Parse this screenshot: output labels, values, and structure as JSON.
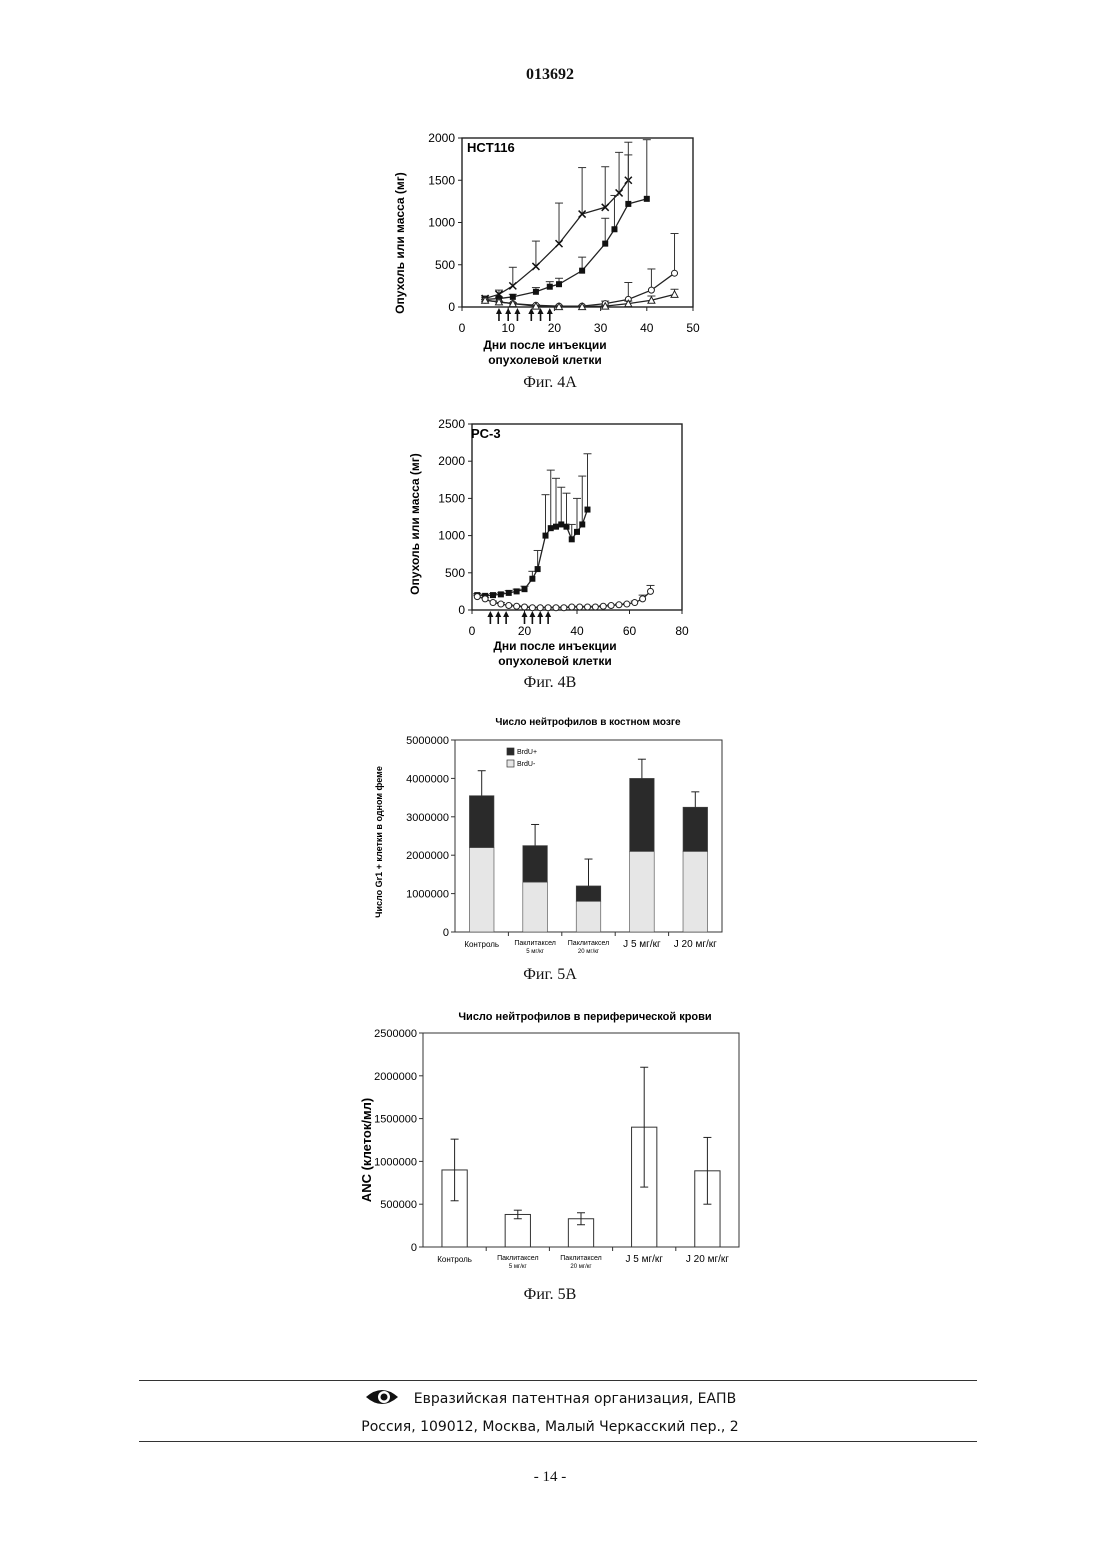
{
  "header": {
    "doc_number": "013692"
  },
  "figures": [
    {
      "caption": "Фиг. 4A"
    },
    {
      "caption": "Фиг. 4B"
    },
    {
      "caption": "Фиг. 5A"
    },
    {
      "caption": "Фиг. 5B"
    }
  ],
  "footer": {
    "org": "Евразийская патентная организация, ЕАПВ",
    "address": "Россия, 109012, Москва, Малый Черкасский пер., 2",
    "page": "- 14 -",
    "logo_icon": "eye-logo-icon"
  },
  "chart_data": [
    {
      "type": "line",
      "title": "HCT116",
      "xlabel": "Дни после инъекции опухолевой клетки",
      "ylabel": "Опухоль или масса (мг)",
      "xlim": [
        0,
        50
      ],
      "ylim": [
        0,
        2000
      ],
      "xticks": [
        "0",
        "10",
        "20",
        "30",
        "40",
        "50"
      ],
      "yticks": [
        "0",
        "500",
        "1000",
        "1500",
        "2000"
      ],
      "arrows_x": [
        8,
        10,
        12,
        15,
        17,
        19
      ],
      "series": [
        {
          "marker": "x",
          "x": [
            5,
            8,
            11,
            16,
            21,
            26,
            31,
            34,
            36
          ],
          "y": [
            100,
            150,
            250,
            480,
            750,
            1100,
            1180,
            1350,
            1500
          ],
          "err": [
            30,
            50,
            220,
            300,
            480,
            550,
            480,
            480,
            450
          ]
        },
        {
          "marker": "square",
          "x": [
            5,
            8,
            11,
            16,
            19,
            21,
            26,
            31,
            33,
            36,
            40
          ],
          "y": [
            90,
            100,
            120,
            180,
            240,
            270,
            430,
            750,
            920,
            1220,
            1280
          ],
          "err": [
            20,
            20,
            30,
            50,
            60,
            70,
            160,
            300,
            400,
            580,
            700
          ]
        },
        {
          "marker": "circle-open",
          "x": [
            5,
            8,
            11,
            16,
            21,
            26,
            31,
            36,
            41,
            46
          ],
          "y": [
            80,
            60,
            40,
            20,
            10,
            10,
            40,
            90,
            200,
            400
          ],
          "err": [
            10,
            10,
            10,
            10,
            10,
            10,
            30,
            200,
            250,
            470
          ]
        },
        {
          "marker": "triangle-open",
          "x": [
            5,
            8,
            11,
            16,
            21,
            26,
            31,
            36,
            41,
            46
          ],
          "y": [
            80,
            60,
            40,
            10,
            5,
            5,
            10,
            40,
            80,
            150
          ],
          "err": [
            10,
            10,
            10,
            10,
            10,
            10,
            10,
            30,
            50,
            60
          ]
        }
      ]
    },
    {
      "type": "line",
      "title": "PC-3",
      "xlabel": "Дни после инъекции опухолевой клетки",
      "ylabel": "Опухоль или масса (мг)",
      "xlim": [
        0,
        80
      ],
      "ylim": [
        0,
        2500
      ],
      "xticks": [
        "0",
        "20",
        "40",
        "60",
        "80"
      ],
      "yticks": [
        "0",
        "500",
        "1000",
        "1500",
        "2000",
        "2500"
      ],
      "arrows_x": [
        7,
        10,
        13,
        20,
        23,
        26,
        29
      ],
      "series": [
        {
          "marker": "square",
          "x": [
            2,
            5,
            8,
            11,
            14,
            17,
            20,
            23,
            25,
            28,
            30,
            32,
            34,
            36,
            38,
            40,
            42,
            44
          ],
          "y": [
            200,
            190,
            200,
            210,
            230,
            250,
            280,
            420,
            550,
            1000,
            1100,
            1120,
            1150,
            1120,
            950,
            1050,
            1150,
            1350
          ],
          "err": [
            20,
            20,
            20,
            20,
            30,
            30,
            40,
            100,
            250,
            550,
            780,
            650,
            500,
            450,
            200,
            450,
            650,
            750
          ]
        },
        {
          "marker": "circle-open",
          "x": [
            2,
            5,
            8,
            11,
            14,
            17,
            20,
            23,
            26,
            29,
            32,
            35,
            38,
            41,
            44,
            47,
            50,
            53,
            56,
            59,
            62,
            65,
            68
          ],
          "y": [
            180,
            150,
            100,
            80,
            60,
            50,
            40,
            30,
            30,
            30,
            30,
            30,
            40,
            40,
            40,
            40,
            50,
            60,
            70,
            80,
            100,
            150,
            250
          ],
          "err": [
            20,
            20,
            20,
            20,
            10,
            10,
            10,
            10,
            10,
            10,
            10,
            10,
            10,
            10,
            10,
            10,
            10,
            10,
            10,
            10,
            20,
            50,
            80
          ]
        }
      ]
    },
    {
      "type": "bar",
      "stacked": true,
      "title": "Число нейтрофилов в костном мозге",
      "ylabel": "Число Gr1 + клетки в одном феме",
      "ylim": [
        0,
        5000000
      ],
      "yticks": [
        "0",
        "1000000",
        "2000000",
        "3000000",
        "4000000",
        "5000000"
      ],
      "categories": [
        "Контроль",
        "Паклитаксел 5 мг/кг",
        "Паклитаксел 20 мг/кг",
        "J 5 мг/кг",
        "J 20 мг/кг"
      ],
      "legend": {
        "position": "top-left"
      },
      "series": [
        {
          "name": "BrdU-",
          "color": "#e6e6e6",
          "values": [
            2200000,
            1300000,
            800000,
            2100000,
            2100000
          ]
        },
        {
          "name": "BrdU+",
          "color": "#2a2a2a",
          "values": [
            1350000,
            950000,
            400000,
            1900000,
            1150000
          ]
        }
      ],
      "totals_err": [
        650000,
        550000,
        700000,
        500000,
        400000
      ]
    },
    {
      "type": "bar",
      "title": "Число нейтрофилов в периферической крови",
      "ylabel": "ANC (клеток/мл)",
      "ylim": [
        0,
        2500000
      ],
      "yticks": [
        "0",
        "500000",
        "1000000",
        "1500000",
        "2000000",
        "2500000"
      ],
      "categories": [
        "Контроль",
        "Паклитаксел 5 мг/кг",
        "Паклитаксел 20 мг/кг",
        "J 5 мг/кг",
        "J 20 мг/кг"
      ],
      "values": [
        900000,
        380000,
        330000,
        1400000,
        890000
      ],
      "err": [
        360000,
        50000,
        70000,
        700000,
        390000
      ]
    }
  ]
}
